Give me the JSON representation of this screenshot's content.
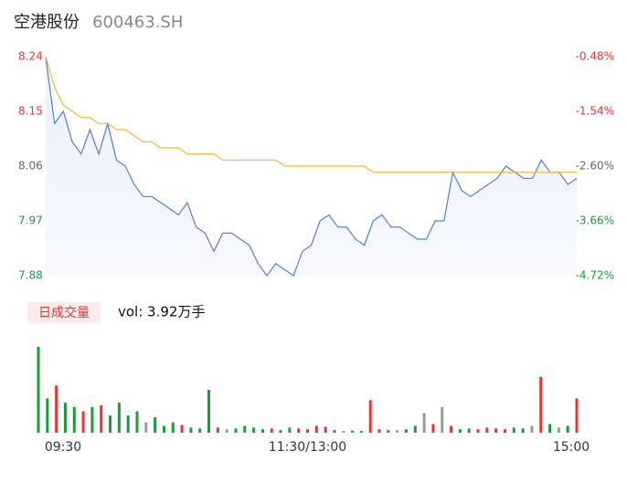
{
  "chart_data": [
    {
      "type": "line",
      "title": "空港股份",
      "subtitle": "600463.SH",
      "x": [
        0,
        4,
        8,
        12,
        16,
        20,
        24,
        28,
        32,
        36,
        40,
        44,
        48,
        52,
        56,
        60,
        64,
        68,
        72,
        76,
        80,
        84,
        88,
        92,
        96,
        100,
        104,
        108,
        112,
        116,
        120,
        124,
        128,
        132,
        136,
        140,
        144,
        148,
        152,
        156,
        160,
        164,
        168,
        172,
        176,
        180,
        184,
        188,
        192,
        196,
        200,
        204,
        208,
        212,
        216,
        220,
        224,
        228,
        232,
        236,
        240
      ],
      "xlim": [
        0,
        240
      ],
      "series": [
        {
          "color": "#4e7fe0",
          "values": [
            8.24,
            8.13,
            8.15,
            8.1,
            8.08,
            8.12,
            8.08,
            8.13,
            8.07,
            8.06,
            8.03,
            8.01,
            8.01,
            8.0,
            7.99,
            7.98,
            8.0,
            7.96,
            7.95,
            7.92,
            7.95,
            7.95,
            7.94,
            7.93,
            7.9,
            7.88,
            7.9,
            7.89,
            7.88,
            7.92,
            7.93,
            7.97,
            7.98,
            7.96,
            7.96,
            7.94,
            7.93,
            7.97,
            7.98,
            7.96,
            7.96,
            7.95,
            7.94,
            7.94,
            7.97,
            7.97,
            8.05,
            8.02,
            8.01,
            8.02,
            8.03,
            8.04,
            8.06,
            8.05,
            8.04,
            8.04,
            8.07,
            8.05,
            8.05,
            8.03,
            8.04
          ]
        },
        {
          "color": "#f5b82e",
          "values": [
            8.24,
            8.19,
            8.16,
            8.15,
            8.14,
            8.14,
            8.13,
            8.13,
            8.12,
            8.12,
            8.11,
            8.1,
            8.1,
            8.09,
            8.09,
            8.09,
            8.08,
            8.08,
            8.08,
            8.08,
            8.07,
            8.07,
            8.07,
            8.07,
            8.07,
            8.07,
            8.07,
            8.06,
            8.06,
            8.06,
            8.06,
            8.06,
            8.06,
            8.06,
            8.06,
            8.06,
            8.06,
            8.05,
            8.05,
            8.05,
            8.05,
            8.05,
            8.05,
            8.05,
            8.05,
            8.05,
            8.05,
            8.05,
            8.05,
            8.05,
            8.05,
            8.05,
            8.05,
            8.05,
            8.05,
            8.05,
            8.05,
            8.05,
            8.05,
            8.05,
            8.05
          ]
        }
      ],
      "ylim": [
        7.88,
        8.24
      ],
      "yticks": [
        8.24,
        8.15,
        8.06,
        7.97,
        7.88
      ],
      "ytick_colors": [
        "#e83434",
        "#e83434",
        "#666666",
        "#1a9c3a",
        "#1a9c3a"
      ],
      "y2lim": [
        -4.72,
        -0.48
      ],
      "y2ticks": [
        {
          "value": -0.48,
          "label": "-0.48%"
        },
        {
          "value": -1.54,
          "label": "-1.54%"
        },
        {
          "value": -2.6,
          "label": "-2.60%"
        },
        {
          "value": -3.66,
          "label": "-3.66%"
        },
        {
          "value": -4.72,
          "label": "-4.72%"
        }
      ],
      "y2tick_colors": [
        "#e83434",
        "#e83434",
        "#666666",
        "#1a9c3a",
        "#1a9c3a"
      ]
    },
    {
      "type": "bar",
      "title": "日成交量",
      "subtitle": "vol: 3.92万手",
      "xlim": [
        0,
        240
      ],
      "xticks": [
        {
          "value": 0,
          "label": "09:30"
        },
        {
          "value": 120,
          "label": "11:30/13:00"
        },
        {
          "value": 240,
          "label": "15:00"
        }
      ],
      "ylim": [
        0,
        1000
      ],
      "up_color": "#e83434",
      "down_color": "#1a9c3a",
      "flat_color": "#999999",
      "values": [
        1000,
        400,
        550,
        350,
        300,
        250,
        300,
        320,
        200,
        350,
        200,
        250,
        120,
        180,
        80,
        120,
        90,
        60,
        50,
        500,
        60,
        40,
        50,
        80,
        60,
        40,
        50,
        30,
        60,
        50,
        40,
        80,
        70,
        30,
        20,
        25,
        20,
        380,
        40,
        30,
        30,
        40,
        80,
        230,
        100,
        300,
        80,
        40,
        50,
        40,
        60,
        50,
        40,
        60,
        50,
        80,
        650,
        100,
        60,
        80,
        400
      ]
    }
  ]
}
